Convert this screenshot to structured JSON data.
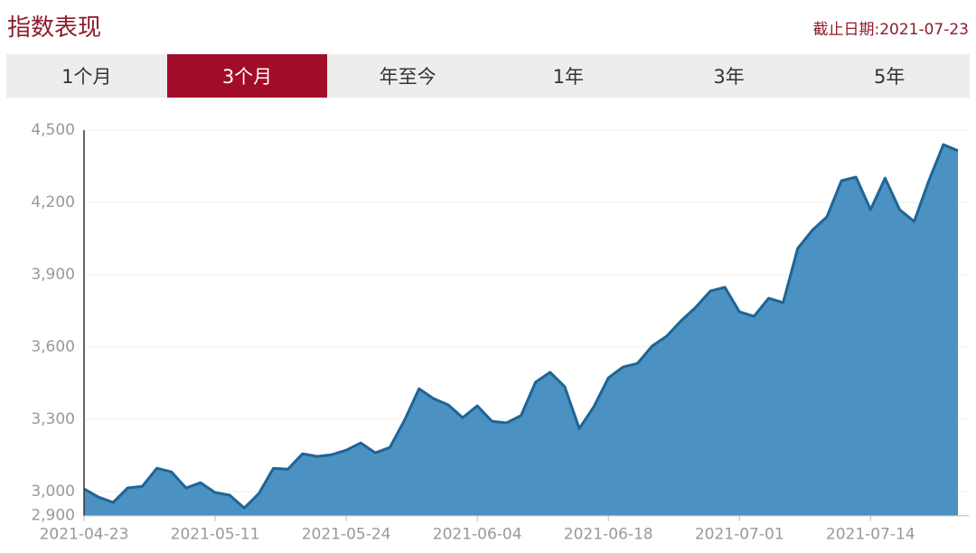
{
  "header": {
    "title": "指数表现",
    "date": "截止日期:2021-07-23"
  },
  "tabs": {
    "items": [
      "1个月",
      "3个月",
      "年至今",
      "1年",
      "3年",
      "5年"
    ],
    "active": 1
  },
  "chart_data": {
    "type": "area",
    "categories": [
      "2021-04-23",
      null,
      null,
      null,
      null,
      null,
      null,
      null,
      null,
      "2021-05-11",
      null,
      null,
      null,
      null,
      null,
      null,
      null,
      null,
      "2021-05-24",
      null,
      null,
      null,
      null,
      null,
      null,
      null,
      null,
      "2021-06-04",
      null,
      null,
      null,
      null,
      null,
      null,
      null,
      null,
      "2021-06-18",
      null,
      null,
      null,
      null,
      null,
      null,
      null,
      null,
      "2021-07-01",
      null,
      null,
      null,
      null,
      null,
      null,
      null,
      null,
      "2021-07-14",
      null,
      null,
      null,
      null,
      null,
      null
    ],
    "values": [
      3011,
      2977,
      2955,
      3015,
      3022,
      3097,
      3082,
      3015,
      3037,
      2996,
      2985,
      2932,
      2992,
      3097,
      3093,
      3157,
      3146,
      3153,
      3172,
      3202,
      3161,
      3183,
      3296,
      3427,
      3386,
      3360,
      3307,
      3356,
      3292,
      3285,
      3315,
      3454,
      3495,
      3435,
      3262,
      3352,
      3472,
      3517,
      3532,
      3604,
      3645,
      3709,
      3765,
      3832,
      3848,
      3746,
      3727,
      3802,
      3784,
      4009,
      4084,
      4140,
      4290,
      4305,
      4170,
      4301,
      4170,
      4121,
      4290,
      4440,
      4415
    ],
    "color": "#4b91c2",
    "line_color": "#1d6596",
    "ylim": [
      2900,
      4500
    ],
    "yticks": [
      {
        "value": 2900,
        "label": "2,900"
      },
      {
        "value": 3000,
        "label": "3,000"
      },
      {
        "value": 3300,
        "label": "3,300"
      },
      {
        "value": 3600,
        "label": "3,600"
      },
      {
        "value": 3900,
        "label": "3,900"
      },
      {
        "value": 4200,
        "label": "4,200"
      },
      {
        "value": 4500,
        "label": "4,500"
      }
    ],
    "grid": true
  }
}
